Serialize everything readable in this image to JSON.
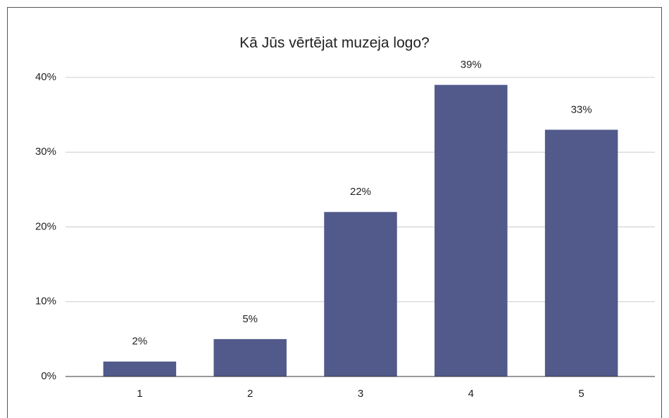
{
  "chart_data": {
    "type": "bar",
    "title": "Kā Jūs vērtējat muzeja logo?",
    "categories": [
      "1",
      "2",
      "3",
      "4",
      "5"
    ],
    "values": [
      2,
      5,
      22,
      39,
      33
    ],
    "value_labels": [
      "2%",
      "5%",
      "22%",
      "39%",
      "33%"
    ],
    "color": "#515a8a",
    "ylim": [
      0,
      40
    ],
    "yticks": [
      {
        "value": 0,
        "label": "0%"
      },
      {
        "value": 10,
        "label": "10%"
      },
      {
        "value": 20,
        "label": "20%"
      },
      {
        "value": 30,
        "label": "30%"
      },
      {
        "value": 40,
        "label": "40%"
      }
    ],
    "grid": true
  }
}
